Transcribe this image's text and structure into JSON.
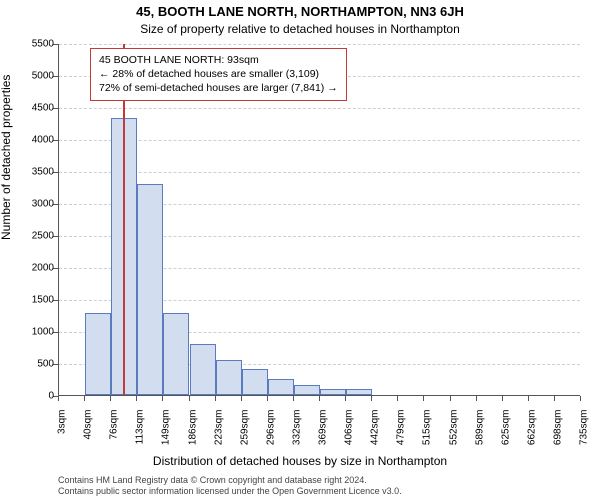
{
  "title": "45, BOOTH LANE NORTH, NORTHAMPTON, NN3 6JH",
  "subtitle": "Size of property relative to detached houses in Northampton",
  "ylabel": "Number of detached properties",
  "xlabel": "Distribution of detached houses by size in Northampton",
  "chart": {
    "type": "histogram",
    "ylim": [
      0,
      5500
    ],
    "ytick_step": 500,
    "background_color": "#ffffff",
    "grid_color": "#cfcfcf",
    "grid_style": "dashed",
    "axis_color": "#555555",
    "label_fontsize": 12,
    "tick_fontsize": 10,
    "bar_fill": "#d2deef",
    "bar_border": "#5a7bbf",
    "bar_border_width": 1,
    "bar_width_ratio": 1.0,
    "x_tick_labels": [
      "3sqm",
      "40sqm",
      "76sqm",
      "113sqm",
      "149sqm",
      "186sqm",
      "223sqm",
      "259sqm",
      "296sqm",
      "332sqm",
      "369sqm",
      "406sqm",
      "442sqm",
      "479sqm",
      "515sqm",
      "552sqm",
      "589sqm",
      "625sqm",
      "662sqm",
      "698sqm",
      "735sqm"
    ],
    "values": [
      0,
      1275,
      4325,
      3300,
      1275,
      800,
      550,
      400,
      250,
      150,
      100,
      100,
      0,
      0,
      0,
      0,
      0,
      0,
      0,
      0
    ],
    "marker": {
      "value_sqm": 93,
      "color": "#c23a3a",
      "width": 2
    }
  },
  "annotation": {
    "border_color": "#c23a3a",
    "lines": [
      "45 BOOTH LANE NORTH: 93sqm",
      "← 28% of detached houses are smaller (3,109)",
      "72% of semi-detached houses are larger (7,841) →"
    ]
  },
  "footer": {
    "line1": "Contains HM Land Registry data © Crown copyright and database right 2024.",
    "line2": "Contains public sector information licensed under the Open Government Licence v3.0."
  }
}
